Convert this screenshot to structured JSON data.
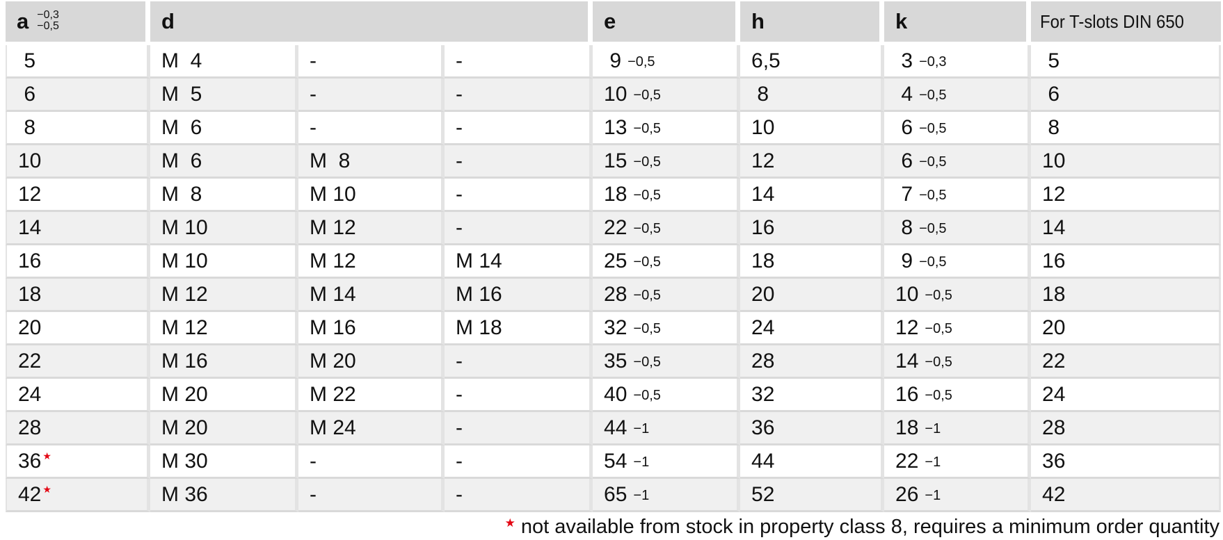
{
  "colors": {
    "header_bg": "#d8d8d8",
    "row_alt_bg": "#f0f0f0",
    "grid_line": "#d9d9d9",
    "gutter_line": "#e3e3e3",
    "asterisk_red": "#e30613"
  },
  "table": {
    "headers": {
      "a": {
        "label": "a",
        "tol_top": "−0,3",
        "tol_bottom": "−0,5"
      },
      "d": "d",
      "e": "e",
      "h": "h",
      "k": "k",
      "tslots": "For T-slots DIN 650"
    },
    "rows": [
      {
        "a": {
          "v": " 5"
        },
        "d1": {
          "v": "M  4"
        },
        "d2": {
          "v": "-"
        },
        "d3": {
          "v": "-"
        },
        "e": {
          "v": " 9",
          "tol": "−0,5"
        },
        "h": {
          "v": "6,5"
        },
        "k": {
          "v": " 3",
          "tol": "−0,3"
        },
        "t": {
          "v": " 5"
        }
      },
      {
        "a": {
          "v": " 6"
        },
        "d1": {
          "v": "M  5"
        },
        "d2": {
          "v": "-"
        },
        "d3": {
          "v": "-"
        },
        "e": {
          "v": "10",
          "tol": "−0,5"
        },
        "h": {
          "v": " 8"
        },
        "k": {
          "v": " 4",
          "tol": "−0,5"
        },
        "t": {
          "v": " 6"
        }
      },
      {
        "a": {
          "v": " 8"
        },
        "d1": {
          "v": "M  6"
        },
        "d2": {
          "v": "-"
        },
        "d3": {
          "v": "-"
        },
        "e": {
          "v": "13",
          "tol": "−0,5"
        },
        "h": {
          "v": "10"
        },
        "k": {
          "v": " 6",
          "tol": "−0,5"
        },
        "t": {
          "v": " 8"
        }
      },
      {
        "a": {
          "v": "10"
        },
        "d1": {
          "v": "M  6"
        },
        "d2": {
          "v": "M  8"
        },
        "d3": {
          "v": "-"
        },
        "e": {
          "v": "15",
          "tol": "−0,5"
        },
        "h": {
          "v": "12"
        },
        "k": {
          "v": " 6",
          "tol": "−0,5"
        },
        "t": {
          "v": "10"
        }
      },
      {
        "a": {
          "v": "12"
        },
        "d1": {
          "v": "M  8"
        },
        "d2": {
          "v": "M 10"
        },
        "d3": {
          "v": "-"
        },
        "e": {
          "v": "18",
          "tol": "−0,5"
        },
        "h": {
          "v": "14"
        },
        "k": {
          "v": " 7",
          "tol": "−0,5"
        },
        "t": {
          "v": "12"
        }
      },
      {
        "a": {
          "v": "14"
        },
        "d1": {
          "v": "M 10"
        },
        "d2": {
          "v": "M 12"
        },
        "d3": {
          "v": "-"
        },
        "e": {
          "v": "22",
          "tol": "−0,5"
        },
        "h": {
          "v": "16"
        },
        "k": {
          "v": " 8",
          "tol": "−0,5"
        },
        "t": {
          "v": "14"
        }
      },
      {
        "a": {
          "v": "16"
        },
        "d1": {
          "v": "M 10"
        },
        "d2": {
          "v": "M 12"
        },
        "d3": {
          "v": "M 14"
        },
        "e": {
          "v": "25",
          "tol": "−0,5"
        },
        "h": {
          "v": "18"
        },
        "k": {
          "v": " 9",
          "tol": "−0,5"
        },
        "t": {
          "v": "16"
        }
      },
      {
        "a": {
          "v": "18"
        },
        "d1": {
          "v": "M 12"
        },
        "d2": {
          "v": "M 14"
        },
        "d3": {
          "v": "M 16"
        },
        "e": {
          "v": "28",
          "tol": "−0,5"
        },
        "h": {
          "v": "20"
        },
        "k": {
          "v": "10",
          "tol": "−0,5"
        },
        "t": {
          "v": "18"
        }
      },
      {
        "a": {
          "v": "20"
        },
        "d1": {
          "v": "M 12"
        },
        "d2": {
          "v": "M 16"
        },
        "d3": {
          "v": "M 18"
        },
        "e": {
          "v": "32",
          "tol": "−0,5"
        },
        "h": {
          "v": "24"
        },
        "k": {
          "v": "12",
          "tol": "−0,5"
        },
        "t": {
          "v": "20"
        }
      },
      {
        "a": {
          "v": "22"
        },
        "d1": {
          "v": "M 16"
        },
        "d2": {
          "v": "M 20"
        },
        "d3": {
          "v": "-"
        },
        "e": {
          "v": "35",
          "tol": "−0,5"
        },
        "h": {
          "v": "28"
        },
        "k": {
          "v": "14",
          "tol": "−0,5"
        },
        "t": {
          "v": "22"
        }
      },
      {
        "a": {
          "v": "24"
        },
        "d1": {
          "v": "M 20"
        },
        "d2": {
          "v": "M 22"
        },
        "d3": {
          "v": "-"
        },
        "e": {
          "v": "40",
          "tol": "−0,5"
        },
        "h": {
          "v": "32"
        },
        "k": {
          "v": "16",
          "tol": "−0,5"
        },
        "t": {
          "v": "24"
        }
      },
      {
        "a": {
          "v": "28"
        },
        "d1": {
          "v": "M 20"
        },
        "d2": {
          "v": "M 24"
        },
        "d3": {
          "v": "-"
        },
        "e": {
          "v": "44",
          "tol": "−1"
        },
        "h": {
          "v": "36"
        },
        "k": {
          "v": "18",
          "tol": "−1"
        },
        "t": {
          "v": "28"
        }
      },
      {
        "a": {
          "v": "36",
          "star": true
        },
        "d1": {
          "v": "M 30"
        },
        "d2": {
          "v": "-"
        },
        "d3": {
          "v": "-"
        },
        "e": {
          "v": "54",
          "tol": "−1"
        },
        "h": {
          "v": "44"
        },
        "k": {
          "v": "22",
          "tol": "−1"
        },
        "t": {
          "v": "36"
        }
      },
      {
        "a": {
          "v": "42",
          "star": true
        },
        "d1": {
          "v": "M 36"
        },
        "d2": {
          "v": "-"
        },
        "d3": {
          "v": "-"
        },
        "e": {
          "v": "65",
          "tol": "−1"
        },
        "h": {
          "v": "52"
        },
        "k": {
          "v": "26",
          "tol": "−1"
        },
        "t": {
          "v": "42"
        }
      }
    ],
    "footnote": {
      "star": "★",
      "text": "not available from stock in property class 8, requires a minimum order quantity"
    }
  }
}
